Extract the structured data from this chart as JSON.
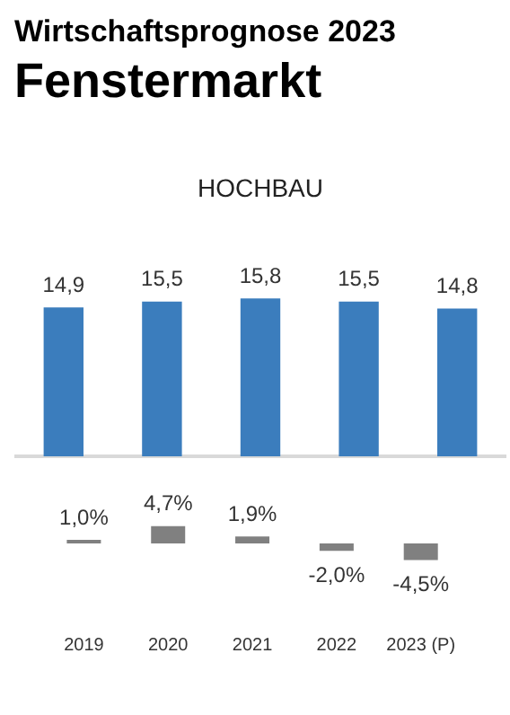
{
  "chart_data": [
    {
      "type": "bar",
      "title": "Wirtschaftsprognose 2023",
      "subtitle": "Fenstermarkt",
      "annotations": [
        "HOCHBAU"
      ],
      "categories": [
        null,
        null,
        null,
        null,
        null
      ],
      "values": [
        14.9,
        15.5,
        15.8,
        15.5,
        14.8
      ],
      "color": "#3b7dbd",
      "value_labels": [
        "14,9",
        "15,5",
        "15,8",
        "15,5",
        "14,8"
      ],
      "tick_labels": false,
      "grid": false,
      "legend": false
    },
    {
      "type": "bar",
      "categories": [
        "2019",
        "2020",
        "2021",
        "2022",
        "2023 (P)"
      ],
      "values": [
        1.0,
        4.7,
        1.9,
        -2.0,
        -4.5
      ],
      "color": "#808080",
      "value_labels": [
        "1,0%",
        "4,7%",
        "1,9%",
        "-2,0%",
        "-4,5%"
      ],
      "tick_labels": "x",
      "grid": false,
      "legend": false
    }
  ]
}
